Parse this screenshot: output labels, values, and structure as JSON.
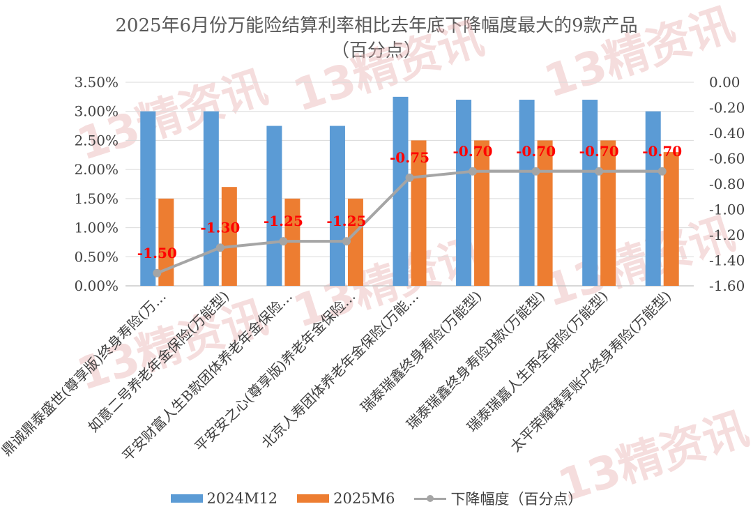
{
  "title": {
    "line1": "2025年6月份万能险结算利率相比去年底下降幅度最大的9款产品",
    "line2": "（百分点）"
  },
  "watermark_text": "13精资讯",
  "colors": {
    "bar_2024": "#5b9bd5",
    "bar_2025": "#ed7d31",
    "line": "#a5a5a5",
    "data_label": "#ff0000",
    "grid": "#d9d9d9",
    "axis_text": "#404040",
    "watermark": "#e8b4b4"
  },
  "chart_data": {
    "type": "bar",
    "title": "2025年6月份万能险结算利率相比去年底下降幅度最大的9款产品（百分点）",
    "categories": [
      "鼎诚鼎泰盛世(尊享版)终身寿险(万…",
      "如意二号养老年金保险(万能型)",
      "平安财富人生B款团体养老年金保险…",
      "平安安之心(尊享版)养老年金保险…",
      "北京人寿团体养老年金保险(万能…",
      "瑞泰瑞鑫终身寿险(万能型)",
      "瑞泰瑞鑫终身寿险B款(万能型)",
      "瑞泰瑞嘉人生两全保险(万能型)",
      "太平荣耀臻享账户终身寿险(万能型)"
    ],
    "series": [
      {
        "name": "2024M12",
        "type": "bar",
        "axis": "left",
        "values": [
          3.0,
          3.0,
          2.75,
          2.75,
          3.25,
          3.2,
          3.2,
          3.2,
          3.0
        ]
      },
      {
        "name": "2025M6",
        "type": "bar",
        "axis": "left",
        "values": [
          1.5,
          1.7,
          1.5,
          1.5,
          2.5,
          2.5,
          2.5,
          2.5,
          2.3
        ]
      },
      {
        "name": "下降幅度（百分点）",
        "type": "line",
        "axis": "right",
        "values": [
          -1.5,
          -1.3,
          -1.25,
          -1.25,
          -0.75,
          -0.7,
          -0.7,
          -0.7,
          -0.7
        ]
      }
    ],
    "data_labels": [
      "-1.50",
      "-1.30",
      "-1.25",
      "-1.25",
      "-0.75",
      "-0.70",
      "-0.70",
      "-0.70",
      "-0.70"
    ],
    "left_axis": {
      "ylim": [
        0,
        3.5
      ],
      "ticks": [
        "0.00%",
        "0.50%",
        "1.00%",
        "1.50%",
        "2.00%",
        "2.50%",
        "3.00%",
        "3.50%"
      ]
    },
    "right_axis": {
      "ylim": [
        -1.6,
        0
      ],
      "ticks": [
        "-1.60",
        "-1.40",
        "-1.20",
        "-1.00",
        "-0.80",
        "-0.60",
        "-0.40",
        "-0.20",
        "0.00"
      ]
    },
    "grid": true,
    "legend_position": "bottom"
  },
  "legend": {
    "items": [
      "2024M12",
      "2025M6",
      "下降幅度（百分点）"
    ]
  }
}
